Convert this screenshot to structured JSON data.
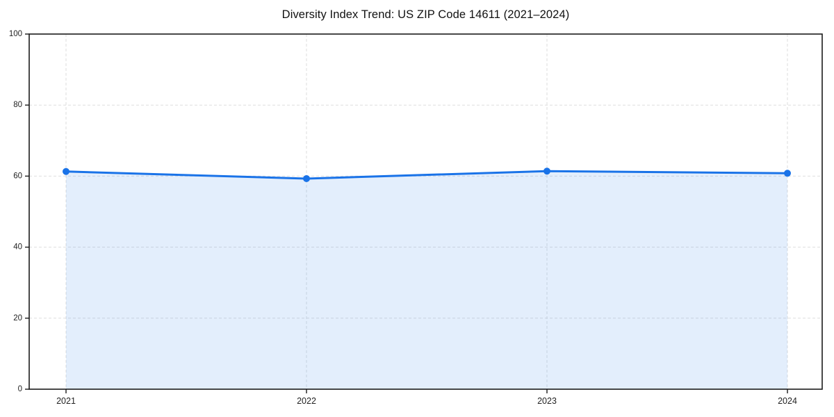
{
  "title": "Diversity Index Trend: US ZIP Code 14611 (2021–2024)",
  "chart_data": {
    "type": "area",
    "title": "Diversity Index Trend: US ZIP Code 14611 (2021–2024)",
    "x": [
      2021,
      2022,
      2023,
      2024
    ],
    "xticklabels": [
      "2021",
      "2022",
      "2023",
      "2024"
    ],
    "series": [
      {
        "name": "Diversity Index",
        "values": [
          61.3,
          59.3,
          61.4,
          60.8
        ]
      }
    ],
    "xlabel": "",
    "ylabel": "",
    "ylim": [
      0,
      100
    ],
    "yticks": [
      0,
      20,
      40,
      60,
      80,
      100
    ],
    "grid": true,
    "grid_style": "dashed",
    "legend_position": "none",
    "line_color": "#1a73e8",
    "marker": "circle",
    "marker_color": "#1a73e8",
    "fill_color": "#1a73e8",
    "fill_opacity": 0.12,
    "grid_color": "#dedede",
    "spine_color": "#1a1a1a",
    "tick_label_color": "#222222"
  }
}
